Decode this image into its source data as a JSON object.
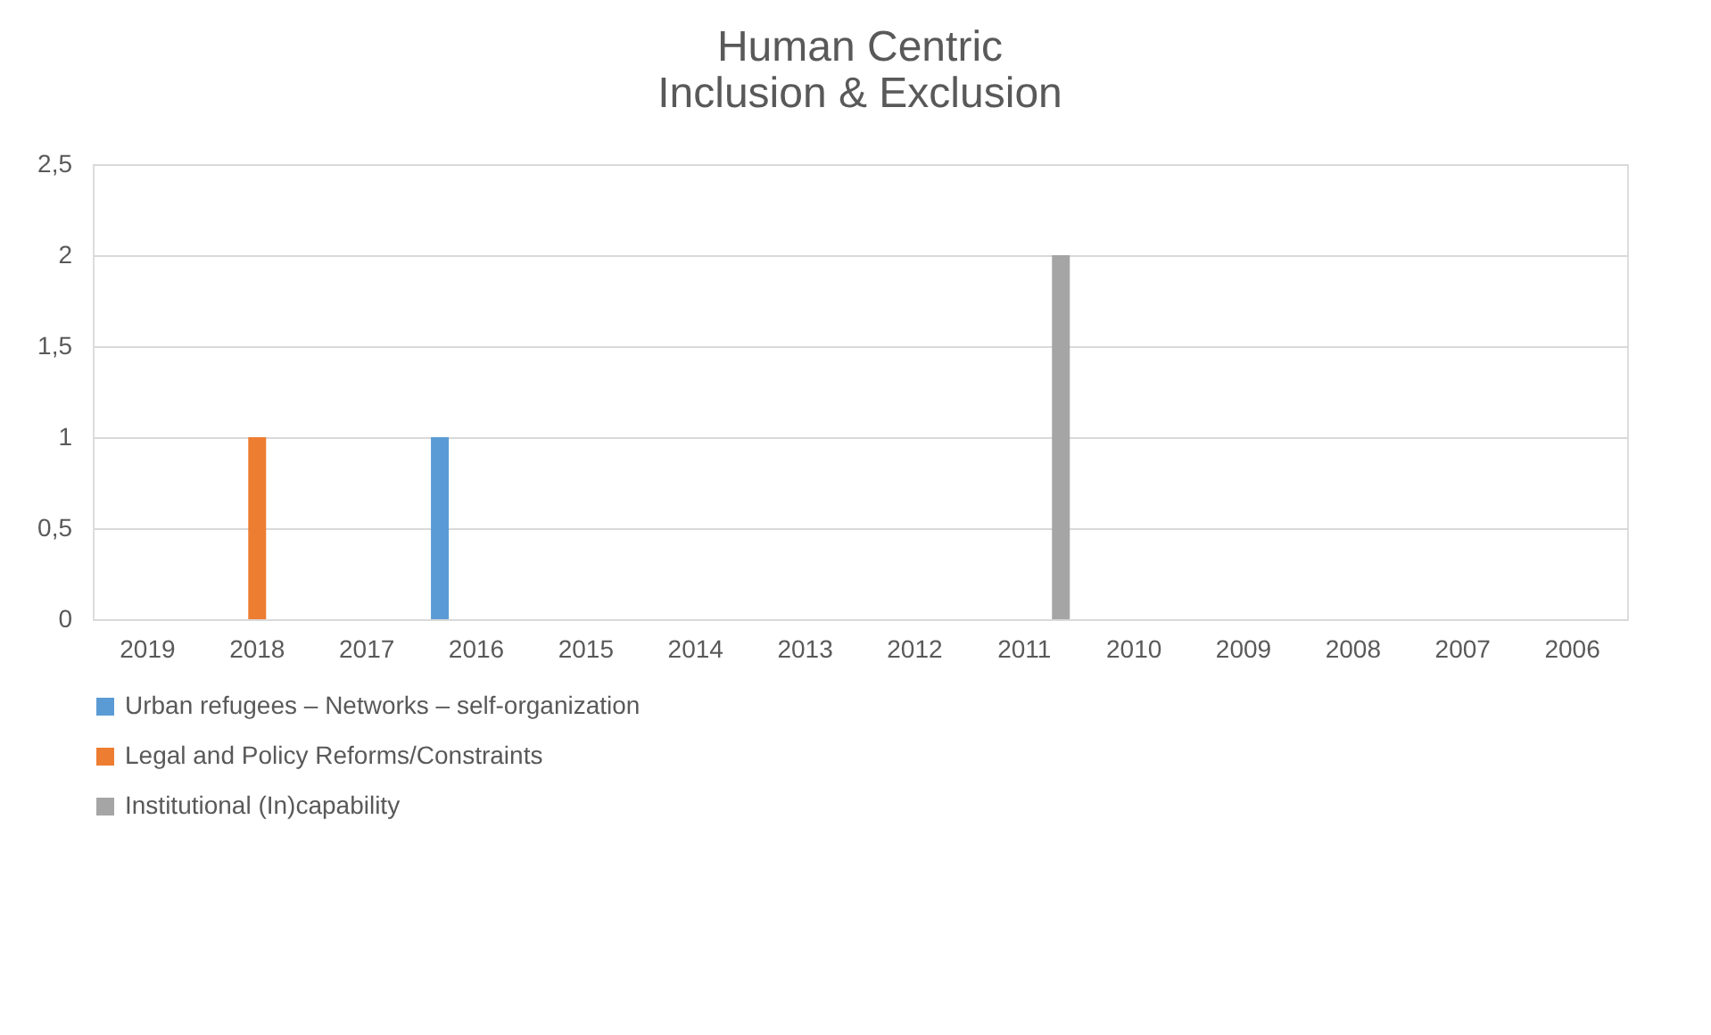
{
  "chart_data": {
    "type": "bar",
    "title": "Human Centric\nInclusion & Exclusion",
    "categories": [
      "2019",
      "2018",
      "2017",
      "2016",
      "2015",
      "2014",
      "2013",
      "2012",
      "2011",
      "2010",
      "2009",
      "2008",
      "2007",
      "2006"
    ],
    "series": [
      {
        "name": "Urban refugees – Networks – self-organization",
        "color": "#5b9bd5",
        "values": [
          0,
          0,
          0,
          1,
          0,
          0,
          0,
          0,
          0,
          0,
          0,
          0,
          0,
          0
        ]
      },
      {
        "name": "Legal and Policy Reforms/Constraints",
        "color": "#ed7d31",
        "values": [
          0,
          1,
          0,
          0,
          0,
          0,
          0,
          0,
          0,
          0,
          0,
          0,
          0,
          0
        ]
      },
      {
        "name": "Institutional (In)capability",
        "color": "#a5a5a5",
        "values": [
          0,
          0,
          0,
          0,
          0,
          0,
          0,
          0,
          2,
          0,
          0,
          0,
          0,
          0
        ]
      }
    ],
    "ylim": [
      0,
      2.5
    ],
    "yticks": [
      0,
      {
        "value": 0.5,
        "label": "0,5"
      },
      1,
      {
        "value": 1.5,
        "label": "1,5"
      },
      2,
      {
        "value": 2.5,
        "label": "2,5"
      }
    ],
    "grid": "y",
    "legend": "bottom"
  }
}
